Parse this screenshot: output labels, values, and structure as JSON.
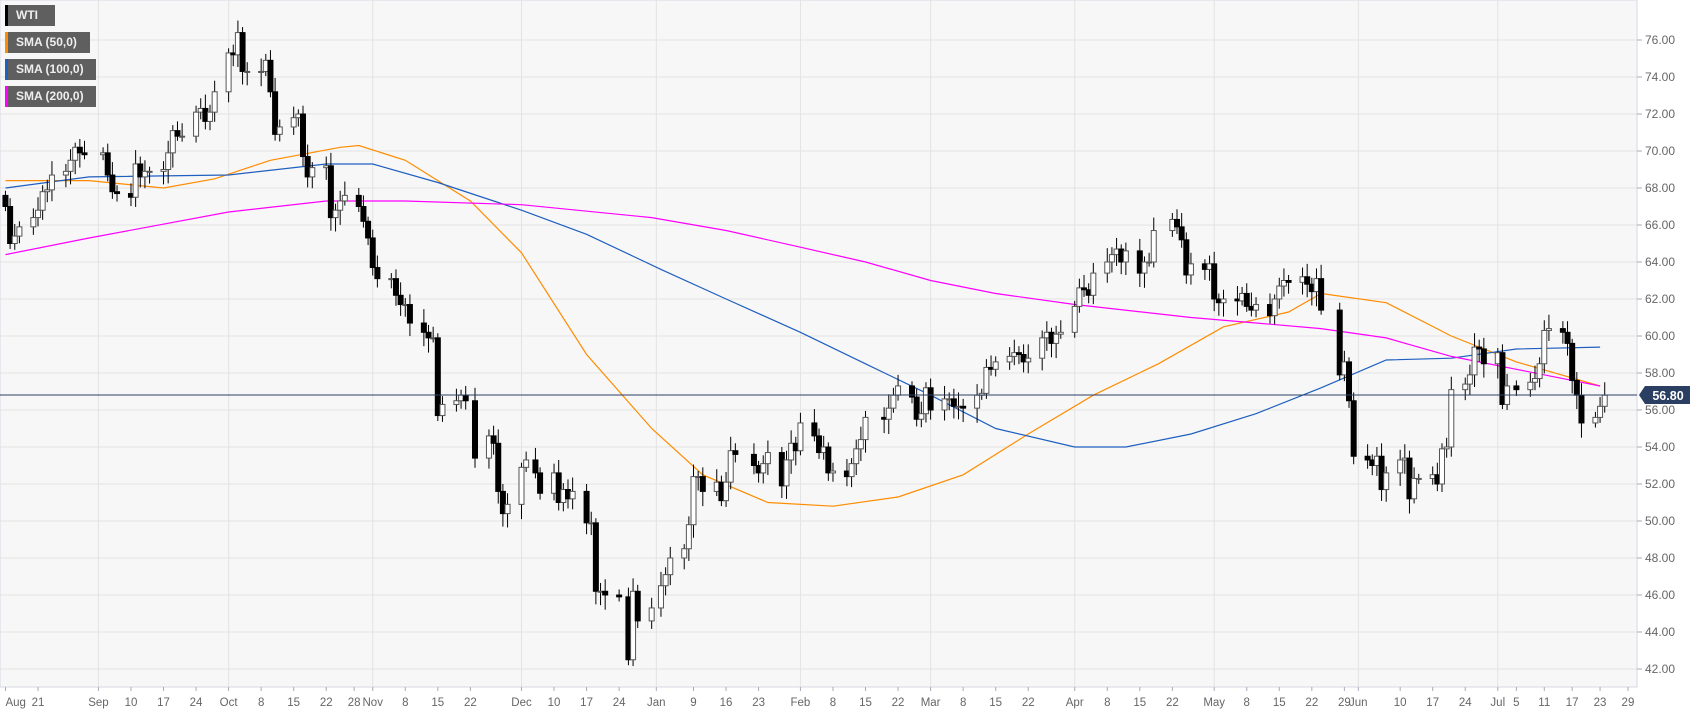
{
  "legend": [
    {
      "label": "WTI",
      "color": "#000000"
    },
    {
      "label": "SMA (50,0)",
      "color": "#ff8c00"
    },
    {
      "label": "SMA (100,0)",
      "color": "#1f5fbf"
    },
    {
      "label": "SMA (200,0)",
      "color": "#ff00ff"
    }
  ],
  "chart_data": {
    "type": "candlestick",
    "symbol": "WTI",
    "last_price_label": "56.80",
    "last_price": 56.8,
    "ylim": [
      41,
      78.5
    ],
    "yticks": [
      "42.00",
      "44.00",
      "46.00",
      "48.00",
      "50.00",
      "52.00",
      "54.00",
      "56.00",
      "58.00",
      "60.00",
      "62.00",
      "64.00",
      "66.00",
      "68.00",
      "70.00",
      "72.00",
      "74.00",
      "76.00"
    ],
    "xticks": [
      {
        "date": "2018-08-14",
        "label": "Aug"
      },
      {
        "date": "2018-08-21",
        "label": "21"
      },
      {
        "date": "2018-09-03",
        "label": "Sep",
        "grid": true
      },
      {
        "date": "2018-09-10",
        "label": "10"
      },
      {
        "date": "2018-09-17",
        "label": "17"
      },
      {
        "date": "2018-09-24",
        "label": "24"
      },
      {
        "date": "2018-10-01",
        "label": "Oct",
        "grid": true
      },
      {
        "date": "2018-10-08",
        "label": "8"
      },
      {
        "date": "2018-10-15",
        "label": "15"
      },
      {
        "date": "2018-10-22",
        "label": "22"
      },
      {
        "date": "2018-10-28",
        "label": "28"
      },
      {
        "date": "2018-11-01",
        "label": "Nov",
        "grid": true
      },
      {
        "date": "2018-11-08",
        "label": "8"
      },
      {
        "date": "2018-11-15",
        "label": "15"
      },
      {
        "date": "2018-11-22",
        "label": "22"
      },
      {
        "date": "2018-12-03",
        "label": "Dec",
        "grid": true
      },
      {
        "date": "2018-12-10",
        "label": "10"
      },
      {
        "date": "2018-12-17",
        "label": "17"
      },
      {
        "date": "2018-12-24",
        "label": "24"
      },
      {
        "date": "2019-01-01",
        "label": "Jan",
        "grid": true
      },
      {
        "date": "2019-01-09",
        "label": "9"
      },
      {
        "date": "2019-01-16",
        "label": "16"
      },
      {
        "date": "2019-01-23",
        "label": "23"
      },
      {
        "date": "2019-02-01",
        "label": "Feb",
        "grid": true
      },
      {
        "date": "2019-02-08",
        "label": "8"
      },
      {
        "date": "2019-02-15",
        "label": "15"
      },
      {
        "date": "2019-02-22",
        "label": "22"
      },
      {
        "date": "2019-03-01",
        "label": "Mar",
        "grid": true
      },
      {
        "date": "2019-03-08",
        "label": "8"
      },
      {
        "date": "2019-03-15",
        "label": "15"
      },
      {
        "date": "2019-03-22",
        "label": "22"
      },
      {
        "date": "2019-04-01",
        "label": "Apr",
        "grid": true
      },
      {
        "date": "2019-04-08",
        "label": "8"
      },
      {
        "date": "2019-04-15",
        "label": "15"
      },
      {
        "date": "2019-04-22",
        "label": "22"
      },
      {
        "date": "2019-05-01",
        "label": "May",
        "grid": true
      },
      {
        "date": "2019-05-08",
        "label": "8"
      },
      {
        "date": "2019-05-15",
        "label": "15"
      },
      {
        "date": "2019-05-22",
        "label": "22"
      },
      {
        "date": "2019-05-29",
        "label": "29"
      },
      {
        "date": "2019-06-01",
        "label": "Jun",
        "grid": true
      },
      {
        "date": "2019-06-10",
        "label": "10"
      },
      {
        "date": "2019-06-17",
        "label": "17"
      },
      {
        "date": "2019-06-24",
        "label": "24"
      },
      {
        "date": "2019-07-01",
        "label": "Jul",
        "grid": true
      },
      {
        "date": "2019-07-05",
        "label": "5"
      },
      {
        "date": "2019-07-11",
        "label": "11"
      },
      {
        "date": "2019-07-17",
        "label": "17"
      },
      {
        "date": "2019-07-23",
        "label": "23"
      },
      {
        "date": "2019-07-29",
        "label": "29"
      }
    ],
    "start_date": "2018-08-14",
    "holidays": [
      "2018-09-03",
      "2018-11-22",
      "2018-12-05",
      "2018-12-25",
      "2019-01-01",
      "2019-01-21",
      "2019-02-18",
      "2019-04-19",
      "2019-05-27",
      "2019-07-04"
    ],
    "first_open": 67.6,
    "closes": [
      67.0,
      65.0,
      65.4,
      65.9,
      66.4,
      66.8,
      67.8,
      67.9,
      68.7,
      68.9,
      69.5,
      70.2,
      69.9,
      69.8,
      69.9,
      68.7,
      67.8,
      67.7,
      67.5,
      69.3,
      68.6,
      68.9,
      68.9,
      69.0,
      69.9,
      71.1,
      70.8,
      70.8,
      72.1,
      72.3,
      71.6,
      72.1,
      73.2,
      75.3,
      75.2,
      76.4,
      74.3,
      74.3,
      74.3,
      74.9,
      73.2,
      70.9,
      71.3,
      71.8,
      72.0,
      69.7,
      68.6,
      69.1,
      69.2,
      66.4,
      66.8,
      67.3,
      67.6,
      67.0,
      66.2,
      65.3,
      63.7,
      63.1,
      63.1,
      62.2,
      61.7,
      61.7,
      60.7,
      60.2,
      59.9,
      59.9,
      55.7,
      56.3,
      56.5,
      56.8,
      56.5,
      53.4,
      54.6,
      54.2,
      51.6,
      50.4,
      50.9,
      52.9,
      53.3,
      52.6,
      51.5,
      52.6,
      51.0,
      51.7,
      51.2,
      51.6,
      49.9,
      49.9,
      46.2,
      46.2,
      46.0,
      45.9,
      42.5,
      46.2,
      44.6,
      45.3,
      46.5,
      47.1,
      48.0,
      48.5,
      49.8,
      52.4,
      52.4,
      51.6,
      52.1,
      51.1,
      52.1,
      53.8,
      53.6,
      53.0,
      52.6,
      53.1,
      53.7,
      51.9,
      53.3,
      54.2,
      53.8,
      55.3,
      54.6,
      53.7,
      54.0,
      52.6,
      52.7,
      52.4,
      53.1,
      53.9,
      54.4,
      55.6,
      55.5,
      56.1,
      56.8,
      57.3,
      56.7,
      55.5,
      55.8,
      57.2,
      56.0,
      56.6,
      56.6,
      56.2,
      56.2,
      56.1,
      56.8,
      56.9,
      58.3,
      58.2,
      58.6,
      58.9,
      59.1,
      59.0,
      58.6,
      58.8,
      59.9,
      60.2,
      59.6,
      60.1,
      60.2,
      61.6,
      62.6,
      62.5,
      62.2,
      63.4,
      64.0,
      64.4,
      64.7,
      64.0,
      64.6,
      63.4,
      64.0,
      64.0,
      65.7,
      66.3,
      65.9,
      65.2,
      63.3,
      63.9,
      63.6,
      63.9,
      62.0,
      61.8,
      62.0,
      61.9,
      62.3,
      61.6,
      61.4,
      61.7,
      61.1,
      62.0,
      62.7,
      63.0,
      62.9,
      63.2,
      62.8,
      62.4,
      63.1,
      61.4,
      57.9,
      58.6,
      56.5,
      53.5,
      53.3,
      53.0,
      53.5,
      51.7,
      52.6,
      53.3,
      53.4,
      51.2,
      52.3,
      52.3,
      52.5,
      52.0,
      53.9,
      54.0,
      57.1,
      57.4,
      57.9,
      59.4,
      59.3,
      58.5,
      59.1,
      56.3,
      57.3,
      57.1,
      57.5,
      57.7,
      58.5,
      60.3,
      60.4,
      60.2,
      59.6,
      57.6,
      56.8,
      55.3,
      55.6,
      56.2,
      56.8
    ],
    "series": [
      {
        "name": "SMA (50,0)",
        "color": "#ff8c00",
        "points": [
          [
            "2018-08-14",
            68.4
          ],
          [
            "2018-09-01",
            68.4
          ],
          [
            "2018-09-17",
            68.0
          ],
          [
            "2018-09-28",
            68.5
          ],
          [
            "2018-10-10",
            69.5
          ],
          [
            "2018-10-25",
            70.2
          ],
          [
            "2018-10-29",
            70.3
          ],
          [
            "2018-11-08",
            69.5
          ],
          [
            "2018-11-22",
            67.3
          ],
          [
            "2018-12-03",
            64.5
          ],
          [
            "2018-12-17",
            59.0
          ],
          [
            "2018-12-31",
            55.0
          ],
          [
            "2019-01-11",
            52.5
          ],
          [
            "2019-01-25",
            51.0
          ],
          [
            "2019-02-08",
            50.8
          ],
          [
            "2019-02-22",
            51.3
          ],
          [
            "2019-03-08",
            52.5
          ],
          [
            "2019-03-22",
            54.7
          ],
          [
            "2019-04-05",
            56.8
          ],
          [
            "2019-04-19",
            58.5
          ],
          [
            "2019-05-03",
            60.5
          ],
          [
            "2019-05-17",
            61.3
          ],
          [
            "2019-05-24",
            62.3
          ],
          [
            "2019-06-07",
            61.8
          ],
          [
            "2019-06-21",
            60.0
          ],
          [
            "2019-07-05",
            58.6
          ],
          [
            "2019-07-23",
            57.3
          ]
        ]
      },
      {
        "name": "SMA (100,0)",
        "color": "#1f5fbf",
        "points": [
          [
            "2018-08-14",
            68.0
          ],
          [
            "2018-09-01",
            68.6
          ],
          [
            "2018-10-01",
            68.7
          ],
          [
            "2018-10-22",
            69.3
          ],
          [
            "2018-11-01",
            69.3
          ],
          [
            "2018-11-15",
            68.3
          ],
          [
            "2018-12-03",
            66.8
          ],
          [
            "2018-12-17",
            65.5
          ],
          [
            "2019-01-02",
            63.6
          ],
          [
            "2019-01-16",
            62.0
          ],
          [
            "2019-02-01",
            60.2
          ],
          [
            "2019-02-15",
            58.5
          ],
          [
            "2019-03-01",
            56.8
          ],
          [
            "2019-03-15",
            55.0
          ],
          [
            "2019-04-01",
            54.0
          ],
          [
            "2019-04-12",
            54.0
          ],
          [
            "2019-04-26",
            54.7
          ],
          [
            "2019-05-10",
            55.8
          ],
          [
            "2019-05-24",
            57.2
          ],
          [
            "2019-06-07",
            58.7
          ],
          [
            "2019-06-21",
            58.8
          ],
          [
            "2019-07-05",
            59.3
          ],
          [
            "2019-07-23",
            59.4
          ]
        ]
      },
      {
        "name": "SMA (200,0)",
        "color": "#ff00ff",
        "points": [
          [
            "2018-08-14",
            64.4
          ],
          [
            "2018-09-01",
            65.3
          ],
          [
            "2018-10-01",
            66.7
          ],
          [
            "2018-10-22",
            67.3
          ],
          [
            "2018-11-08",
            67.3
          ],
          [
            "2018-12-03",
            67.1
          ],
          [
            "2018-12-31",
            66.4
          ],
          [
            "2019-01-16",
            65.7
          ],
          [
            "2019-02-01",
            64.8
          ],
          [
            "2019-02-15",
            64.0
          ],
          [
            "2019-03-01",
            63.0
          ],
          [
            "2019-03-15",
            62.3
          ],
          [
            "2019-04-01",
            61.7
          ],
          [
            "2019-04-26",
            61.0
          ],
          [
            "2019-05-10",
            60.7
          ],
          [
            "2019-05-24",
            60.4
          ],
          [
            "2019-06-07",
            59.9
          ],
          [
            "2019-06-21",
            58.9
          ],
          [
            "2019-07-05",
            58.2
          ],
          [
            "2019-07-23",
            57.3
          ]
        ]
      }
    ]
  }
}
